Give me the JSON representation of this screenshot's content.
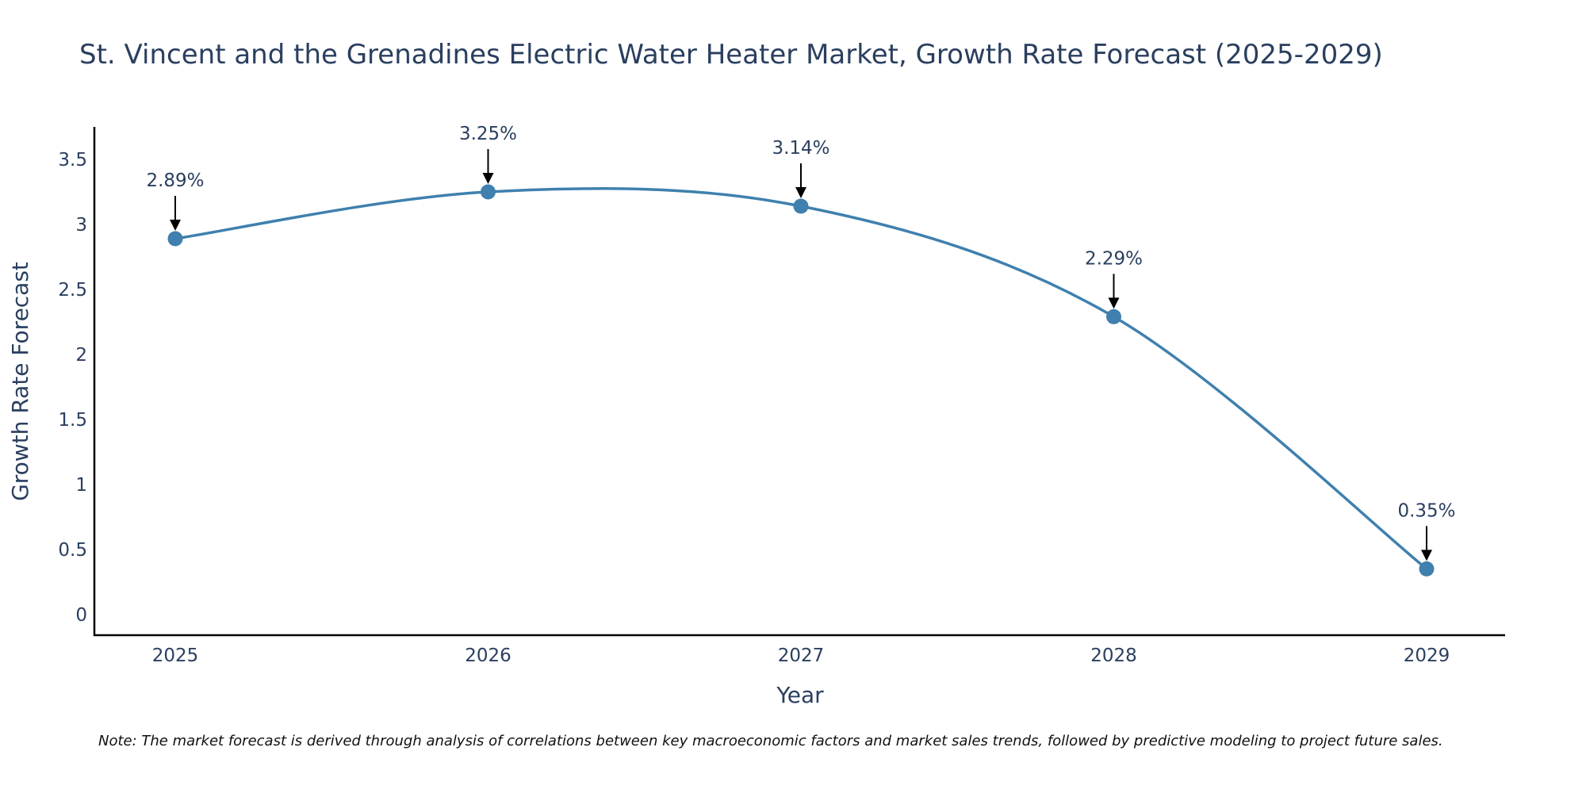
{
  "chart_data": {
    "type": "line",
    "title": "St. Vincent and the Grenadines Electric Water Heater Market, Growth Rate Forecast (2025-2029)",
    "xlabel": "Year",
    "ylabel": "Growth Rate Forecast",
    "categories": [
      "2025",
      "2026",
      "2027",
      "2028",
      "2029"
    ],
    "values": [
      2.89,
      3.25,
      3.14,
      2.29,
      0.35
    ],
    "labels": [
      "2.89%",
      "3.25%",
      "3.14%",
      "2.29%",
      "0.35%"
    ],
    "yticks": [
      "0",
      "0.5",
      "1",
      "1.5",
      "2",
      "2.5",
      "3",
      "3.5"
    ],
    "ytick_values": [
      0,
      0.5,
      1,
      1.5,
      2,
      2.5,
      3,
      3.5
    ],
    "ylim": [
      -0.16,
      3.75
    ],
    "line_color": "#3f80ae",
    "marker_color": "#3f80ae",
    "line_shape": "spline",
    "grid": false,
    "legend": "none",
    "note": "Note: The market forecast is derived through analysis of correlations between key macroeconomic factors and market sales trends, followed by predictive modeling to project future sales."
  }
}
